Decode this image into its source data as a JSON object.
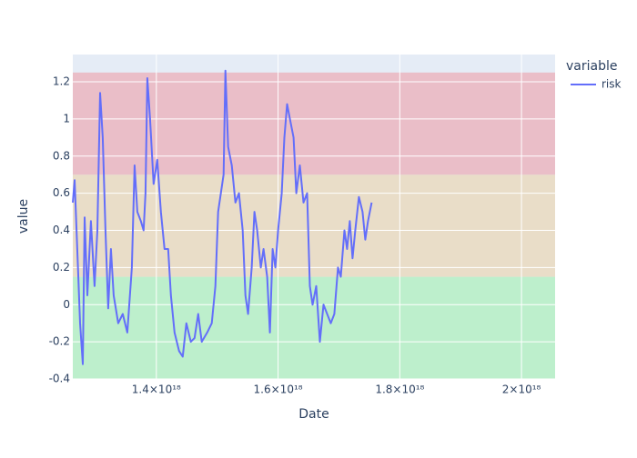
{
  "chart_data": {
    "type": "line",
    "x": [
      1.2627e+18,
      1.2657e+18,
      1.2701e+18,
      1.2746e+18,
      1.2791e+18,
      1.2821e+18,
      1.2866e+18,
      1.2925e+18,
      1.2985e+18,
      1.303e+18,
      1.3075e+18,
      1.3119e+18,
      1.3164e+18,
      1.3209e+18,
      1.3254e+18,
      1.3299e+18,
      1.3373e+18,
      1.3448e+18,
      1.3522e+18,
      1.3597e+18,
      1.3642e+18,
      1.3687e+18,
      1.3746e+18,
      1.3791e+18,
      1.3821e+18,
      1.3851e+18,
      1.3896e+18,
      1.3955e+18,
      1.4015e+18,
      1.4075e+18,
      1.4134e+18,
      1.4194e+18,
      1.4239e+18,
      1.4299e+18,
      1.4373e+18,
      1.4433e+18,
      1.4493e+18,
      1.4567e+18,
      1.4627e+18,
      1.4687e+18,
      1.4746e+18,
      1.4836e+18,
      1.491e+18,
      1.497e+18,
      1.5015e+18,
      1.506e+18,
      1.5104e+18,
      1.5134e+18,
      1.5179e+18,
      1.5239e+18,
      1.5299e+18,
      1.5358e+18,
      1.5418e+18,
      1.5463e+18,
      1.5507e+18,
      1.5567e+18,
      1.5612e+18,
      1.5657e+18,
      1.5716e+18,
      1.5761e+18,
      1.5821e+18,
      1.5866e+18,
      1.591e+18,
      1.5955e+18,
      1.6e+18,
      1.606e+18,
      1.6104e+18,
      1.6149e+18,
      1.6194e+18,
      1.6254e+18,
      1.6299e+18,
      1.6358e+18,
      1.6418e+18,
      1.6478e+18,
      1.6522e+18,
      1.6567e+18,
      1.6627e+18,
      1.6687e+18,
      1.6746e+18,
      1.6806e+18,
      1.6866e+18,
      1.6925e+18,
      1.6985e+18,
      1.703e+18,
      1.709e+18,
      1.7134e+18,
      1.7179e+18,
      1.7224e+18,
      1.7269e+18,
      1.7328e+18,
      1.7388e+18,
      1.7433e+18,
      1.7478e+18,
      1.7537e+18
    ],
    "series": [
      {
        "name": "risk",
        "color": "#636efa",
        "values": [
          0.55,
          0.67,
          0.3,
          -0.1,
          -0.32,
          0.47,
          0.05,
          0.45,
          0.1,
          0.4,
          1.14,
          0.9,
          0.4,
          -0.02,
          0.3,
          0.05,
          -0.1,
          -0.05,
          -0.15,
          0.2,
          0.75,
          0.5,
          0.45,
          0.4,
          0.6,
          1.22,
          1.0,
          0.65,
          0.78,
          0.5,
          0.3,
          0.3,
          0.05,
          -0.15,
          -0.25,
          -0.28,
          -0.1,
          -0.2,
          -0.18,
          -0.05,
          -0.2,
          -0.15,
          -0.1,
          0.1,
          0.5,
          0.6,
          0.7,
          1.26,
          0.85,
          0.75,
          0.55,
          0.6,
          0.4,
          0.05,
          -0.05,
          0.2,
          0.5,
          0.4,
          0.2,
          0.3,
          0.15,
          -0.15,
          0.3,
          0.2,
          0.4,
          0.6,
          0.9,
          1.08,
          1.0,
          0.9,
          0.6,
          0.75,
          0.55,
          0.6,
          0.1,
          0.0,
          0.1,
          -0.2,
          0.0,
          -0.05,
          -0.1,
          -0.05,
          0.2,
          0.15,
          0.4,
          0.3,
          0.45,
          0.25,
          0.4,
          0.58,
          0.5,
          0.35,
          0.45,
          0.55
        ]
      }
    ],
    "bands": [
      {
        "y0": -0.4,
        "y1": 0.15,
        "color": "#b8efc8"
      },
      {
        "y0": 0.15,
        "y1": 0.7,
        "color": "#e9dcc3"
      },
      {
        "y0": 0.7,
        "y1": 1.25,
        "color": "#eab9c3"
      }
    ],
    "xlabel": "Date",
    "ylabel": "value",
    "legend_title": "variable",
    "xlim": [
      1.2627e+18,
      2.0552e+18
    ],
    "xticks": [
      {
        "value": 1.4e+18,
        "label": "1.4×10¹⁸"
      },
      {
        "value": 1.6e+18,
        "label": "1.6×10¹⁸"
      },
      {
        "value": 1.8e+18,
        "label": "1.8×10¹⁸"
      },
      {
        "value": 2e+18,
        "label": "2×10¹⁸"
      }
    ],
    "ylim": [
      -0.4,
      1.347
    ],
    "yticks": [
      -0.4,
      -0.2,
      0,
      0.2,
      0.4,
      0.6,
      0.8,
      1,
      1.2
    ],
    "grid": true,
    "plot_bgcolor": "#e5ecf6"
  }
}
